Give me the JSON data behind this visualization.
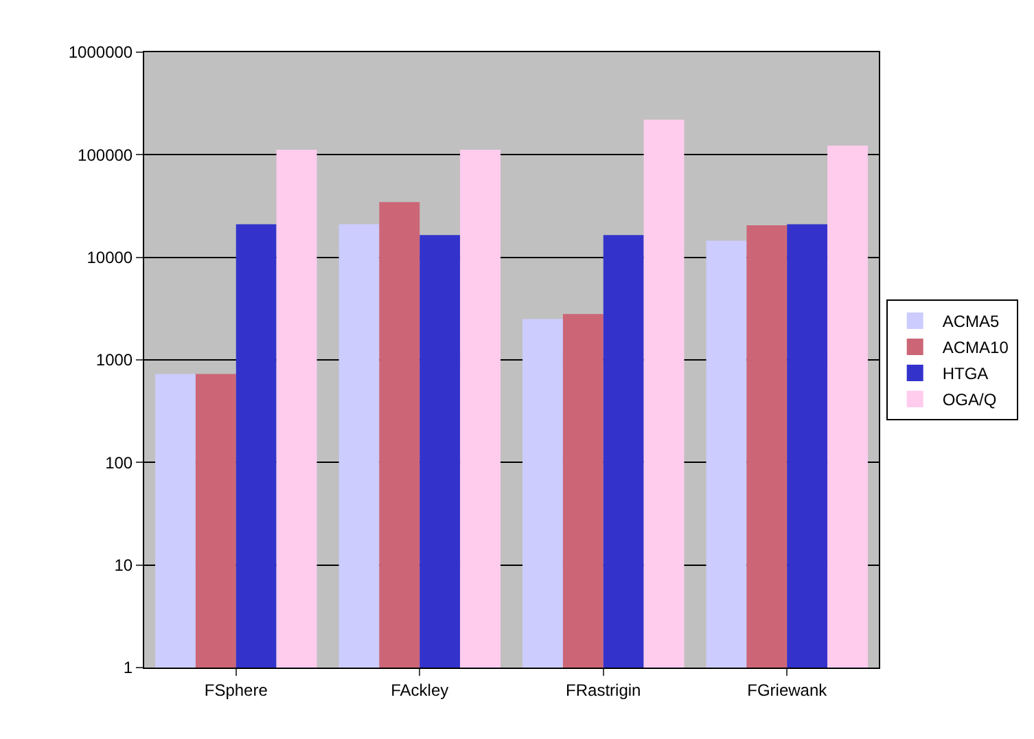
{
  "chart_data": {
    "type": "bar",
    "categories": [
      "FSphere",
      "FAckley",
      "FRastrigin",
      "FGriewank"
    ],
    "series": [
      {
        "name": "ACMA5",
        "color": "#ccccff",
        "values": [
          730,
          21000,
          2500,
          14500
        ]
      },
      {
        "name": "ACMA10",
        "color": "#cc6677",
        "values": [
          730,
          34500,
          2800,
          20500
        ]
      },
      {
        "name": "HTGA",
        "color": "#3333cc",
        "values": [
          21000,
          16500,
          16500,
          21000
        ]
      },
      {
        "name": "OGA/Q",
        "color": "#ffccee",
        "values": [
          112000,
          112000,
          220000,
          123000
        ]
      }
    ],
    "log": true,
    "ylim": [
      1,
      1000000
    ],
    "yticks": [
      1,
      10,
      100,
      1000,
      10000,
      100000,
      1000000
    ],
    "grid": "y",
    "legend": "right"
  }
}
